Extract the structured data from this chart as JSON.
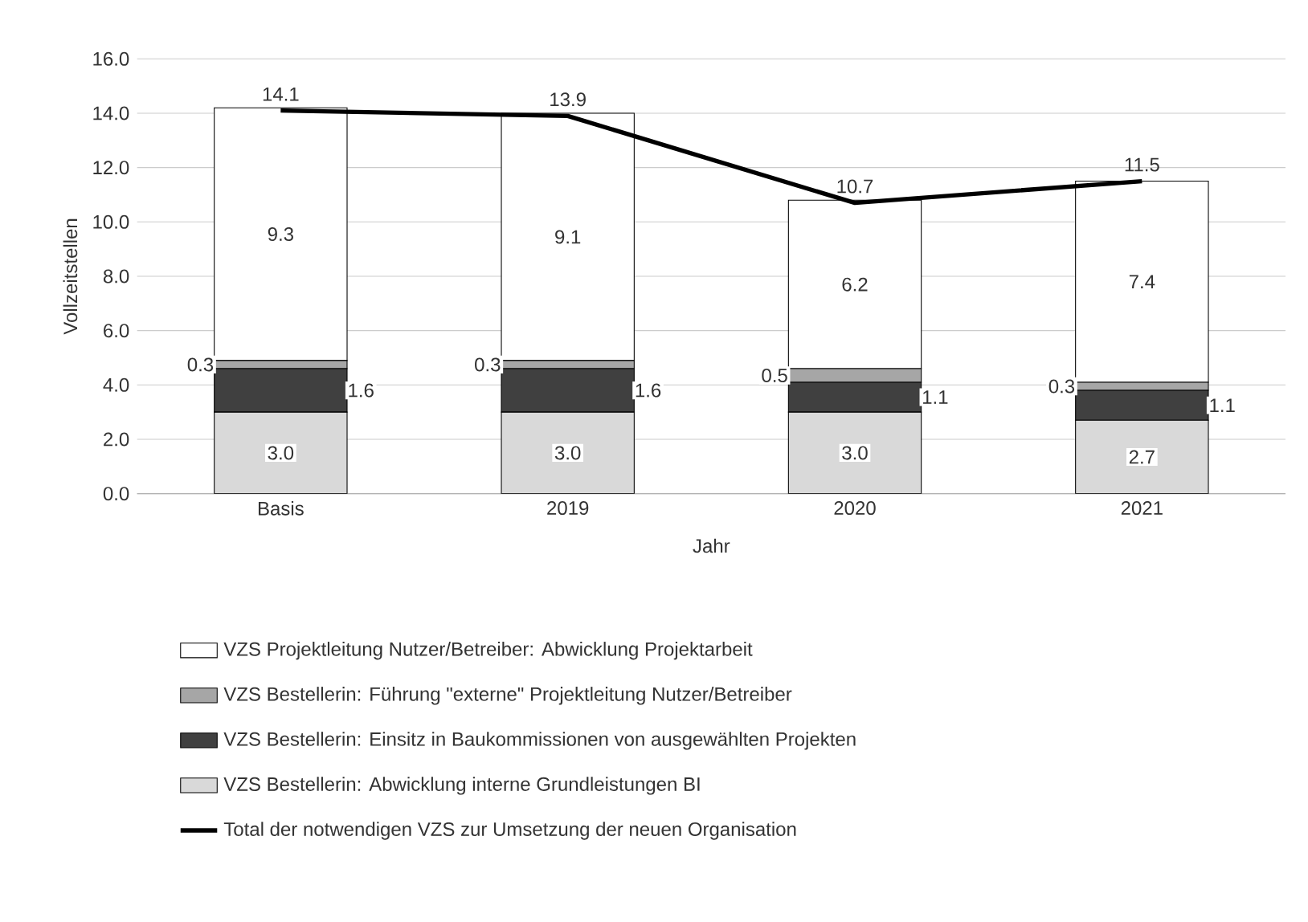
{
  "chart_data": {
    "type": "bar",
    "stacked": true,
    "xlabel": "Jahr",
    "ylabel": "Vollzeitstellen",
    "categories": [
      "Basis",
      "2019",
      "2020",
      "2021"
    ],
    "series": [
      {
        "name": "VZS Bestellerin: Abwicklung interne Grundleistungen BI",
        "color": "#d9d9d9",
        "values": [
          3.0,
          3.0,
          3.0,
          2.7
        ],
        "value_labels": [
          "3.0",
          "3.0",
          "3.0",
          "2.7"
        ]
      },
      {
        "name": "VZS Bestellerin: Einsitz in Baukommissionen von ausgewählten Projekten",
        "color": "#404040",
        "values": [
          1.6,
          1.6,
          1.1,
          1.1
        ],
        "value_labels": [
          "1.6",
          "1.6",
          "1.1",
          "1.1"
        ]
      },
      {
        "name": "VZS Bestellerin: Führung \"externe\"  Projektleitung Nutzer/Betreiber",
        "color": "#a6a6a6",
        "values": [
          0.3,
          0.3,
          0.5,
          0.3
        ],
        "value_labels": [
          "0.3",
          "0.3",
          "0.5",
          "0.3"
        ]
      },
      {
        "name": "VZS Projektleitung Nutzer/Betreiber: Abwicklung Projektarbeit",
        "color": "#ffffff",
        "values": [
          9.3,
          9.1,
          6.2,
          7.4
        ],
        "value_labels": [
          "9.3",
          "9.1",
          "6.2",
          "7.4"
        ]
      },
      {
        "name": "Total der notwendigen VZS zur Umsetzung der neuen Organisation",
        "type": "line",
        "color": "#000000",
        "values": [
          14.1,
          13.9,
          10.7,
          11.5
        ],
        "value_labels": [
          "14.1",
          "13.9",
          "10.7",
          "11.5"
        ]
      }
    ],
    "ylim": [
      0,
      16
    ],
    "yticks": [
      {
        "value": 0,
        "label": "0.0"
      },
      {
        "value": 2,
        "label": "2.0"
      },
      {
        "value": 4,
        "label": "4.0"
      },
      {
        "value": 6,
        "label": "6.0"
      },
      {
        "value": 8,
        "label": "8.0"
      },
      {
        "value": 10,
        "label": "10.0"
      },
      {
        "value": 12,
        "label": "12.0"
      },
      {
        "value": 14,
        "label": "14.0"
      },
      {
        "value": 16,
        "label": "16.0"
      }
    ],
    "grid": "y",
    "legend": "bottom",
    "marker": "none"
  }
}
